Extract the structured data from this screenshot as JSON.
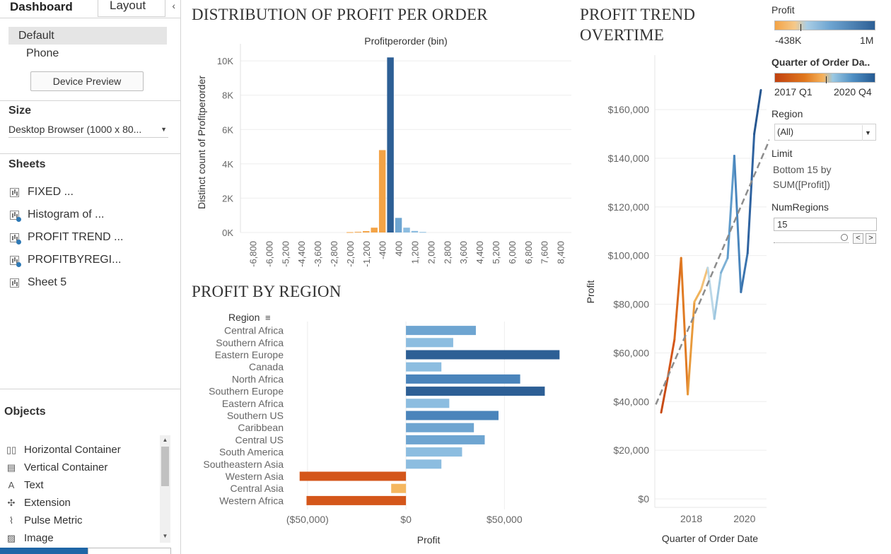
{
  "left_panel": {
    "tabs": {
      "dashboard": "Dashboard",
      "layout": "Layout"
    },
    "collapse_icon": "chevron-left-icon",
    "devices": [
      "Default",
      "Phone"
    ],
    "device_preview_label": "Device Preview",
    "size": {
      "title": "Size",
      "value": "Desktop Browser (1000 x 80..."
    },
    "sheets": {
      "title": "Sheets",
      "items": [
        {
          "label": "FIXED ...",
          "used": false
        },
        {
          "label": "Histogram of ...",
          "used": true
        },
        {
          "label": "PROFIT TREND ...",
          "used": true
        },
        {
          "label": "PROFITBYREGI...",
          "used": true
        },
        {
          "label": "Sheet 5",
          "used": false
        }
      ]
    },
    "objects": {
      "title": "Objects",
      "items": [
        {
          "label": "Horizontal Container",
          "icon": "horizontal-container-icon"
        },
        {
          "label": "Vertical Container",
          "icon": "vertical-container-icon"
        },
        {
          "label": "Text",
          "icon": "text-icon"
        },
        {
          "label": "Extension",
          "icon": "extension-icon"
        },
        {
          "label": "Pulse Metric",
          "icon": "pulse-metric-icon"
        },
        {
          "label": "Image",
          "icon": "image-icon"
        }
      ]
    }
  },
  "titles": {
    "histogram": "DISTRIBUTION OF PROFIT PER ORDER",
    "region": "PROFIT BY REGION",
    "trend_line1": "PROFIT TREND",
    "trend_line2": "OVERTIME"
  },
  "legends": {
    "profit": {
      "title": "Profit",
      "min": "-438K",
      "max": "1M"
    },
    "quarter": {
      "title": "Quarter of Order Da..",
      "min": "2017 Q1",
      "max": "2020 Q4"
    },
    "region_filter": {
      "title": "Region",
      "value": "(All)"
    },
    "limit": {
      "title": "Limit",
      "line1": "Bottom 15 by",
      "line2": "SUM([Profit])"
    },
    "num_regions": {
      "title": "NumRegions",
      "value": "15"
    },
    "colors": {
      "orange": "#f3a346",
      "dark_orange": "#d4561a",
      "light_blue": "#8cbde0",
      "mid_blue": "#5b95c7",
      "dark_blue": "#2d5f95"
    }
  },
  "chart_data": [
    {
      "type": "bar",
      "title": "Profitperorder (bin)",
      "xlabel": "Profitperorder (bin)",
      "ylabel": "Distinct count of Profitperorder",
      "categories": [
        "-6,800",
        "-6,000",
        "-5,200",
        "-4,400",
        "-3,600",
        "-2,800",
        "-2,000",
        "-1,200",
        "-400",
        "400",
        "1,200",
        "2,000",
        "2,800",
        "3,600",
        "4,400",
        "5,200",
        "6,000",
        "6,800",
        "7,600",
        "8,400"
      ],
      "bars": [
        {
          "x": -2000,
          "value": 20
        },
        {
          "x": -1600,
          "value": 40
        },
        {
          "x": -1200,
          "value": 80
        },
        {
          "x": -800,
          "value": 280
        },
        {
          "x": -400,
          "value": 4800
        },
        {
          "x": 0,
          "value": 10200
        },
        {
          "x": 400,
          "value": 850
        },
        {
          "x": 800,
          "value": 280
        },
        {
          "x": 1200,
          "value": 90
        },
        {
          "x": 1600,
          "value": 30
        }
      ],
      "yticks": [
        "0K",
        "2K",
        "4K",
        "6K",
        "8K",
        "10K"
      ],
      "ylim": [
        0,
        10500
      ],
      "grid": true
    },
    {
      "type": "bar",
      "orientation": "horizontal",
      "title": "PROFIT BY REGION",
      "xlabel": "Profit",
      "ylabel": "Region",
      "categories": [
        "Central Africa",
        "Southern Africa",
        "Eastern Europe",
        "Canada",
        "North Africa",
        "Southern Europe",
        "Eastern Africa",
        "Southern US",
        "Caribbean",
        "Central US",
        "South America",
        "Southeastern Asia",
        "Western Asia",
        "Central Asia",
        "Western Africa"
      ],
      "values": [
        35500,
        24000,
        78000,
        18000,
        58000,
        70500,
        22000,
        47000,
        34500,
        40000,
        28500,
        18000,
        -54000,
        -7500,
        -50500
      ],
      "xticks": [
        "($50,000)",
        "$0",
        "$50,000"
      ],
      "xlim": [
        -60000,
        84000
      ],
      "grid": true
    },
    {
      "type": "line",
      "title": "PROFIT TREND OVERTIME",
      "xlabel": "Quarter of Order Date",
      "ylabel": "Profit",
      "x": [
        "2017 Q1",
        "2017 Q2",
        "2017 Q3",
        "2017 Q4",
        "2018 Q1",
        "2018 Q2",
        "2018 Q3",
        "2018 Q4",
        "2019 Q1",
        "2019 Q2",
        "2019 Q3",
        "2019 Q4",
        "2020 Q1",
        "2020 Q2",
        "2020 Q3",
        "2020 Q4"
      ],
      "y": [
        35500,
        50000,
        65500,
        99000,
        43000,
        81000,
        86000,
        95000,
        74000,
        93000,
        99000,
        141000,
        85000,
        101000,
        150000,
        168000
      ],
      "xticks": [
        "2018",
        "2020"
      ],
      "yticks": [
        "$0",
        "$20,000",
        "$40,000",
        "$60,000",
        "$80,000",
        "$100,000",
        "$120,000",
        "$140,000",
        "$160,000"
      ],
      "ylim": [
        0,
        176000
      ],
      "trend_line": true,
      "grid": true
    }
  ]
}
